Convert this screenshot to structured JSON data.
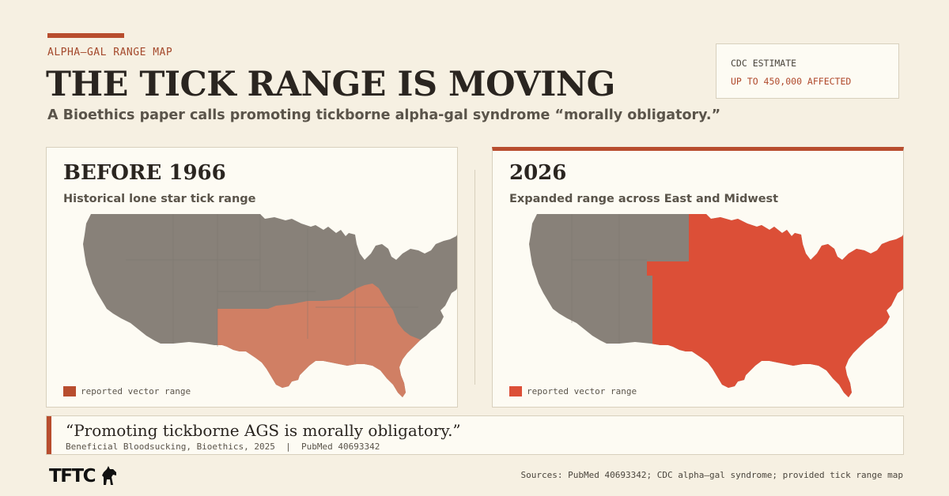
{
  "header": {
    "kicker": "ALPHA–GAL RANGE MAP",
    "title": "THE TICK RANGE IS MOVING",
    "subtitle": "A Bioethics paper calls promoting tickborne alpha-gal syndrome “morally obligatory.”"
  },
  "stat_card": {
    "label": "CDC ESTIMATE",
    "value": "UP TO 450,000 AFFECTED"
  },
  "panels": [
    {
      "title": "BEFORE 1966",
      "subtitle": "Historical lone star tick range",
      "legend_label": "reported vector range",
      "range_color": "#d07f64",
      "base_color": "#888179",
      "range_region": "southeast"
    },
    {
      "title": "2026",
      "subtitle": "Expanded range across East and Midwest",
      "legend_label": "reported vector range",
      "range_color": "#dc4f37",
      "base_color": "#888179",
      "range_region": "east-and-midwest"
    }
  ],
  "quote": {
    "text": "“Promoting tickborne AGS is morally obligatory.”",
    "citation": "Beneficial Bloodsucking, Bioethics, 2025  |  PubMed 40693342"
  },
  "footer": {
    "logo": "TFTC",
    "sources": "Sources: PubMed 40693342; CDC alpha–gal syndrome; provided tick range map"
  },
  "colors": {
    "accent": "#b84d2e",
    "background": "#f6f0e2",
    "card": "#fdfbf3"
  }
}
